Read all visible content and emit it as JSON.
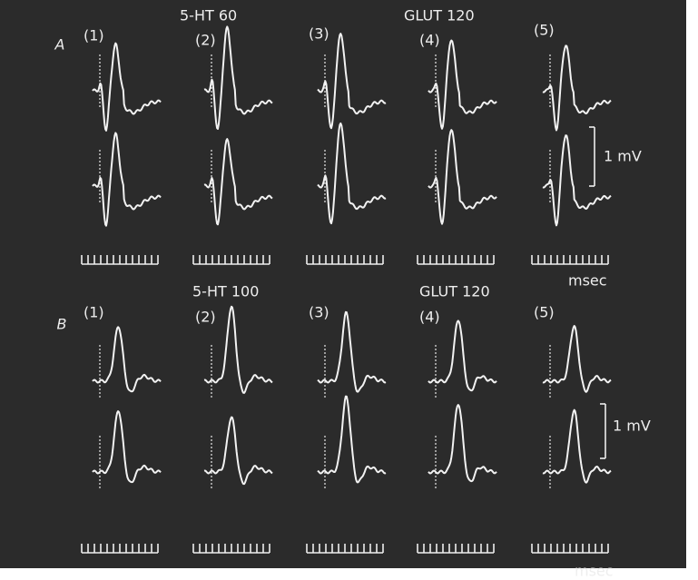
{
  "panels": [
    {
      "label": "A",
      "conditions": [
        "5-HT 60",
        "GLUT 120"
      ],
      "columns": [
        "(1)",
        "(2)",
        "(3)",
        "(4)",
        "(5)"
      ],
      "scale_bar": "1 mV",
      "time_unit": "msec"
    },
    {
      "label": "B",
      "conditions": [
        "5-HT 100",
        "GLUT 120"
      ],
      "columns": [
        "(1)",
        "(2)",
        "(3)",
        "(4)",
        "(5)"
      ],
      "scale_bar": "1 mV",
      "time_unit": "msec"
    }
  ]
}
